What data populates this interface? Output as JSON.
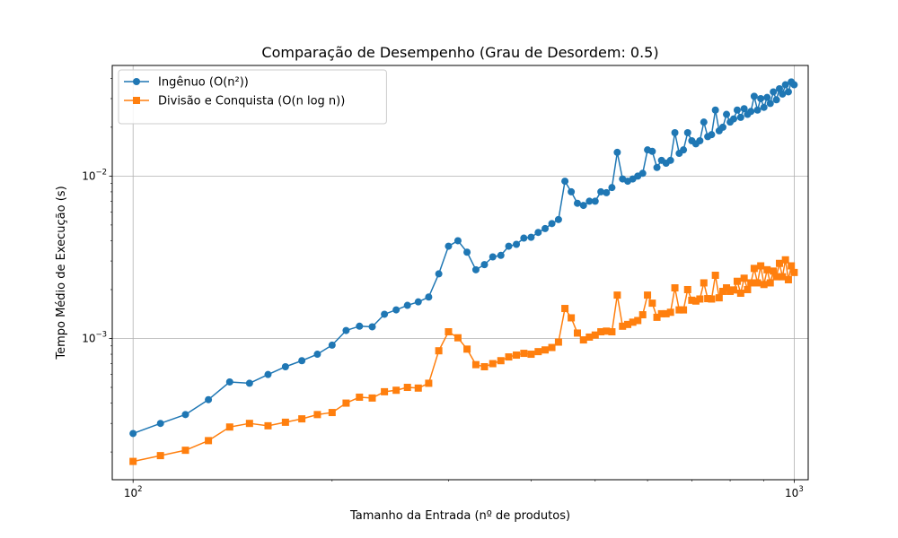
{
  "chart_data": {
    "type": "line",
    "title": "Comparação de Desempenho (Grau de Desordem: 0.5)",
    "xlabel": "Tamanho da Entrada (nº de produtos)",
    "ylabel": "Tempo Médio de Execução (s)",
    "xscale": "log",
    "yscale": "log",
    "xlim": [
      93,
      1050
    ],
    "ylim": [
      0.000135,
      0.048
    ],
    "grid": true,
    "legend": "top-left",
    "x_major_ticks": [
      {
        "base": "10",
        "exp": "2",
        "value": 100
      },
      {
        "base": "10",
        "exp": "3",
        "value": 1000
      }
    ],
    "y_major_ticks": [
      {
        "base": "10",
        "exp": "−3",
        "value": 0.001
      },
      {
        "base": "10",
        "exp": "−2",
        "value": 0.01
      }
    ],
    "x": [
      100,
      110,
      120,
      130,
      140,
      150,
      160,
      170,
      180,
      190,
      200,
      210,
      220,
      230,
      240,
      250,
      260,
      270,
      280,
      290,
      300,
      310,
      320,
      330,
      340,
      350,
      360,
      370,
      380,
      390,
      400,
      410,
      420,
      430,
      440,
      450,
      460,
      470,
      480,
      490,
      500,
      510,
      520,
      530,
      540,
      550,
      560,
      570,
      580,
      590,
      600,
      610,
      620,
      630,
      640,
      650,
      660,
      670,
      680,
      690,
      700,
      710,
      720,
      730,
      740,
      750,
      760,
      770,
      780,
      790,
      800,
      810,
      820,
      830,
      840,
      850,
      860,
      870,
      880,
      890,
      900,
      910,
      920,
      930,
      940,
      950,
      960,
      970,
      980,
      990,
      1000
    ],
    "series": [
      {
        "name": "Ingênuo (O(n²))",
        "color": "#1f77b4",
        "marker": "circle",
        "values": [
          0.00026,
          0.0003,
          0.00034,
          0.00042,
          0.00054,
          0.00053,
          0.0006,
          0.00067,
          0.00073,
          0.0008,
          0.00091,
          0.00112,
          0.00119,
          0.00118,
          0.00141,
          0.0015,
          0.0016,
          0.00168,
          0.0018,
          0.0025,
          0.0037,
          0.004,
          0.0034,
          0.00265,
          0.00285,
          0.00318,
          0.00325,
          0.0037,
          0.0038,
          0.00415,
          0.0042,
          0.0045,
          0.00475,
          0.0051,
          0.0054,
          0.0093,
          0.008,
          0.0068,
          0.0066,
          0.007,
          0.007,
          0.008,
          0.0079,
          0.0085,
          0.014,
          0.0096,
          0.0093,
          0.0096,
          0.01,
          0.0104,
          0.0145,
          0.0142,
          0.0113,
          0.0125,
          0.012,
          0.0125,
          0.0185,
          0.0138,
          0.0145,
          0.0185,
          0.0165,
          0.0158,
          0.0165,
          0.0215,
          0.0175,
          0.018,
          0.0255,
          0.019,
          0.02,
          0.024,
          0.0215,
          0.0225,
          0.0255,
          0.023,
          0.026,
          0.024,
          0.025,
          0.031,
          0.0255,
          0.03,
          0.0265,
          0.0305,
          0.028,
          0.033,
          0.0295,
          0.0345,
          0.032,
          0.0365,
          0.033,
          0.038,
          0.0365
        ]
      },
      {
        "name": "Divisão e Conquista (O(n log n))",
        "color": "#ff7f0e",
        "marker": "square",
        "values": [
          0.000175,
          0.00019,
          0.000205,
          0.000235,
          0.000285,
          0.0003,
          0.00029,
          0.000305,
          0.00032,
          0.00034,
          0.00035,
          0.0004,
          0.000435,
          0.00043,
          0.00047,
          0.00048,
          0.0005,
          0.000495,
          0.00053,
          0.00084,
          0.0011,
          0.00101,
          0.00086,
          0.00069,
          0.00067,
          0.0007,
          0.00073,
          0.00077,
          0.00079,
          0.00081,
          0.0008,
          0.00083,
          0.00085,
          0.00088,
          0.00095,
          0.00153,
          0.00134,
          0.00108,
          0.00098,
          0.00102,
          0.00105,
          0.0011,
          0.00111,
          0.0011,
          0.00185,
          0.00119,
          0.00122,
          0.00126,
          0.00129,
          0.0014,
          0.00185,
          0.00165,
          0.00135,
          0.00142,
          0.00142,
          0.00145,
          0.00205,
          0.0015,
          0.0015,
          0.002,
          0.00172,
          0.0017,
          0.00175,
          0.0022,
          0.00176,
          0.00175,
          0.00245,
          0.00178,
          0.00195,
          0.00205,
          0.00195,
          0.00199,
          0.00225,
          0.0019,
          0.00235,
          0.002,
          0.0022,
          0.0027,
          0.0022,
          0.0028,
          0.00215,
          0.00265,
          0.0022,
          0.0026,
          0.0024,
          0.0029,
          0.0024,
          0.00305,
          0.0023,
          0.0028,
          0.00255
        ]
      }
    ]
  }
}
